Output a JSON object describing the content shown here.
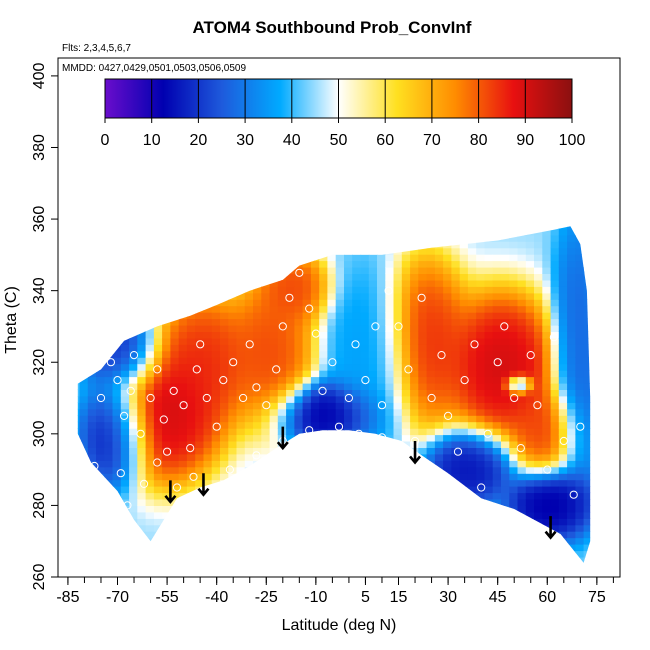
{
  "chart_data": {
    "type": "heatmap",
    "title": "ATOM4 Southbound Prob_ConvInf",
    "annotation_flts": "Flts: 2,3,4,5,6,7",
    "annotation_mmdd": "MMDD: 0427,0429,0501,0503,0506,0509",
    "xlabel": "Latitude (deg N)",
    "ylabel": "Theta (C)",
    "xlim": [
      -88,
      82
    ],
    "ylim": [
      260,
      405
    ],
    "x_ticks": [
      -85,
      -70,
      -55,
      -40,
      -25,
      -10,
      5,
      15,
      30,
      45,
      60,
      75
    ],
    "x_ticks_minor_step": 5,
    "y_ticks": [
      260,
      280,
      300,
      320,
      340,
      360,
      380,
      400
    ],
    "colorbar": {
      "min": 0,
      "max": 100,
      "ticks": [
        0,
        10,
        20,
        30,
        40,
        50,
        60,
        70,
        80,
        90,
        100
      ],
      "colors": [
        "#6a0dcc",
        "#0000b0",
        "#1e5adc",
        "#00aaff",
        "#ffffff",
        "#ffe020",
        "#ff8c00",
        "#e81010",
        "#8b1010"
      ]
    },
    "grid": false,
    "legend": "none",
    "region": {
      "upper": [
        [
          -82,
          314
        ],
        [
          -75,
          318
        ],
        [
          -68,
          326
        ],
        [
          -58,
          330
        ],
        [
          -48,
          333
        ],
        [
          -40,
          336
        ],
        [
          -30,
          340
        ],
        [
          -20,
          343
        ],
        [
          -15,
          347
        ],
        [
          -5,
          350
        ],
        [
          10,
          350
        ],
        [
          25,
          352
        ],
        [
          45,
          354
        ],
        [
          62,
          357
        ],
        [
          67,
          358
        ],
        [
          70,
          353
        ],
        [
          72,
          340
        ],
        [
          73,
          310
        ],
        [
          73,
          270
        ],
        [
          71,
          264
        ]
      ],
      "lower": [
        [
          -82,
          300
        ],
        [
          -78,
          292
        ],
        [
          -70,
          284
        ],
        [
          -65,
          276
        ],
        [
          -60,
          270
        ],
        [
          -52,
          282
        ],
        [
          -45,
          285
        ],
        [
          -38,
          287
        ],
        [
          -30,
          291
        ],
        [
          -22,
          296
        ],
        [
          -15,
          300
        ],
        [
          -8,
          301
        ],
        [
          0,
          301
        ],
        [
          8,
          300
        ],
        [
          16,
          298
        ],
        [
          22,
          294
        ],
        [
          30,
          289
        ],
        [
          40,
          282
        ],
        [
          50,
          279
        ],
        [
          58,
          275
        ],
        [
          64,
          272
        ],
        [
          71,
          264
        ]
      ]
    },
    "hotspots": [
      {
        "x": -57,
        "y": 305,
        "value": 95,
        "rx": 14,
        "ry": 15
      },
      {
        "x": -45,
        "y": 320,
        "value": 88,
        "rx": 12,
        "ry": 14
      },
      {
        "x": -25,
        "y": 322,
        "value": 85,
        "rx": 10,
        "ry": 16
      },
      {
        "x": -18,
        "y": 340,
        "value": 85,
        "rx": 8,
        "ry": 8
      },
      {
        "x": 22,
        "y": 325,
        "value": 88,
        "rx": 10,
        "ry": 18
      },
      {
        "x": 45,
        "y": 318,
        "value": 95,
        "rx": 13,
        "ry": 16
      },
      {
        "x": 58,
        "y": 300,
        "value": 85,
        "rx": 8,
        "ry": 10
      },
      {
        "x": -72,
        "y": 300,
        "value": 8,
        "rx": 8,
        "ry": 12
      },
      {
        "x": -70,
        "y": 322,
        "value": 15,
        "rx": 9,
        "ry": 9
      },
      {
        "x": -8,
        "y": 305,
        "value": 8,
        "rx": 12,
        "ry": 7
      },
      {
        "x": 5,
        "y": 320,
        "value": 35,
        "rx": 10,
        "ry": 20
      },
      {
        "x": 35,
        "y": 290,
        "value": 12,
        "rx": 10,
        "ry": 8
      },
      {
        "x": 60,
        "y": 280,
        "value": 8,
        "rx": 10,
        "ry": 8
      },
      {
        "x": 68,
        "y": 320,
        "value": 25,
        "rx": 6,
        "ry": 30
      },
      {
        "x": 50,
        "y": 313,
        "value": 5,
        "rx": 3,
        "ry": 2
      }
    ],
    "points": [
      [
        -80,
        318
      ],
      [
        -75,
        310
      ],
      [
        -72,
        320
      ],
      [
        -70,
        315
      ],
      [
        -68,
        305
      ],
      [
        -66,
        312
      ],
      [
        -65,
        322
      ],
      [
        -63,
        300
      ],
      [
        -60,
        310
      ],
      [
        -58,
        318
      ],
      [
        -56,
        304
      ],
      [
        -55,
        295
      ],
      [
        -53,
        312
      ],
      [
        -50,
        308
      ],
      [
        -48,
        296
      ],
      [
        -46,
        318
      ],
      [
        -45,
        325
      ],
      [
        -43,
        310
      ],
      [
        -40,
        302
      ],
      [
        -38,
        315
      ],
      [
        -35,
        320
      ],
      [
        -32,
        310
      ],
      [
        -30,
        325
      ],
      [
        -28,
        313
      ],
      [
        -25,
        308
      ],
      [
        -22,
        318
      ],
      [
        -20,
        330
      ],
      [
        -18,
        338
      ],
      [
        -15,
        345
      ],
      [
        -12,
        335
      ],
      [
        -10,
        328
      ],
      [
        -8,
        312
      ],
      [
        -5,
        320
      ],
      [
        -3,
        302
      ],
      [
        0,
        310
      ],
      [
        2,
        325
      ],
      [
        5,
        315
      ],
      [
        8,
        330
      ],
      [
        10,
        308
      ],
      [
        12,
        340
      ],
      [
        15,
        330
      ],
      [
        18,
        318
      ],
      [
        20,
        298
      ],
      [
        22,
        338
      ],
      [
        25,
        310
      ],
      [
        28,
        322
      ],
      [
        30,
        305
      ],
      [
        33,
        295
      ],
      [
        35,
        315
      ],
      [
        38,
        325
      ],
      [
        40,
        285
      ],
      [
        42,
        300
      ],
      [
        45,
        320
      ],
      [
        47,
        330
      ],
      [
        50,
        310
      ],
      [
        52,
        296
      ],
      [
        55,
        322
      ],
      [
        57,
        308
      ],
      [
        60,
        290
      ],
      [
        62,
        327
      ],
      [
        65,
        298
      ],
      [
        68,
        283
      ],
      [
        70,
        302
      ],
      [
        -77,
        291
      ],
      [
        -73,
        285
      ],
      [
        -69,
        289
      ],
      [
        -67,
        280
      ],
      [
        -62,
        286
      ],
      [
        -58,
        292
      ],
      [
        -52,
        285
      ],
      [
        -47,
        288
      ],
      [
        -43,
        283
      ],
      [
        -36,
        290
      ],
      [
        -28,
        294
      ],
      [
        -20,
        298
      ],
      [
        -12,
        301
      ],
      [
        3,
        300
      ],
      [
        10,
        299
      ]
    ],
    "arrows": [
      {
        "x": -54,
        "y_top": 287,
        "y_bottom": 281
      },
      {
        "x": -44,
        "y_top": 289,
        "y_bottom": 283
      },
      {
        "x": -20,
        "y_top": 302,
        "y_bottom": 296
      },
      {
        "x": 20,
        "y_top": 298,
        "y_bottom": 292
      },
      {
        "x": 61,
        "y_top": 277,
        "y_bottom": 271
      }
    ]
  }
}
